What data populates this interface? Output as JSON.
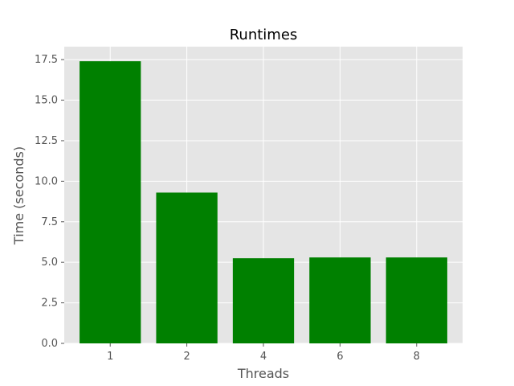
{
  "colors": {
    "plot_background": "#e5e5e5",
    "bar": "#008000",
    "grid": "#ffffff",
    "tick_text": "#555555",
    "title_text": "#000000"
  },
  "chart_data": {
    "type": "bar",
    "title": "Runtimes",
    "xlabel": "Threads",
    "ylabel": "Time (seconds)",
    "categories": [
      "1",
      "2",
      "4",
      "6",
      "8"
    ],
    "values": [
      17.4,
      9.3,
      5.25,
      5.3,
      5.3
    ],
    "ylim": [
      0,
      18.3
    ],
    "yticks": [
      0.0,
      2.5,
      5.0,
      7.5,
      10.0,
      12.5,
      15.0,
      17.5
    ],
    "ytick_labels": [
      "0.0",
      "2.5",
      "5.0",
      "7.5",
      "10.0",
      "12.5",
      "15.0",
      "17.5"
    ],
    "grid": true,
    "legend": false
  }
}
